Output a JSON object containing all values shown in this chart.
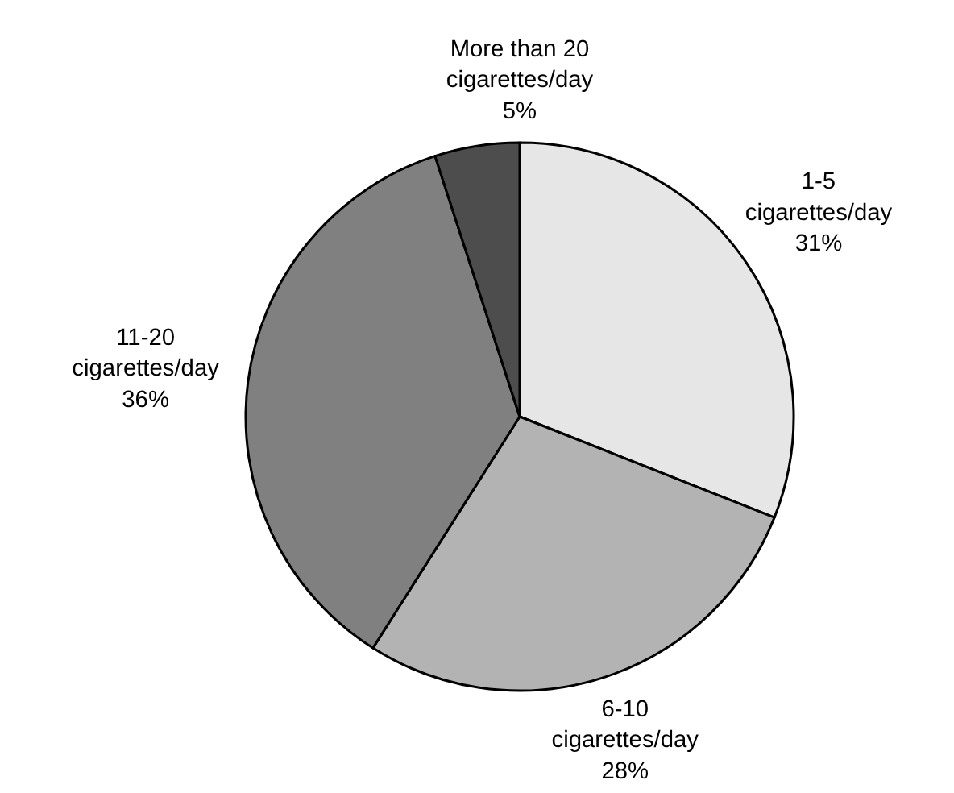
{
  "chart_data": {
    "type": "pie",
    "categories": [
      "1-5 cigarettes/day",
      "6-10 cigarettes/day",
      "11-20 cigarettes/day",
      "More than 20 cigarettes/day"
    ],
    "values": [
      31,
      28,
      36,
      5
    ],
    "value_labels": [
      "31%",
      "28%",
      "36%",
      "5%"
    ],
    "colors": [
      "#e6e6e6",
      "#b3b3b3",
      "#808080",
      "#4d4d4d"
    ]
  }
}
